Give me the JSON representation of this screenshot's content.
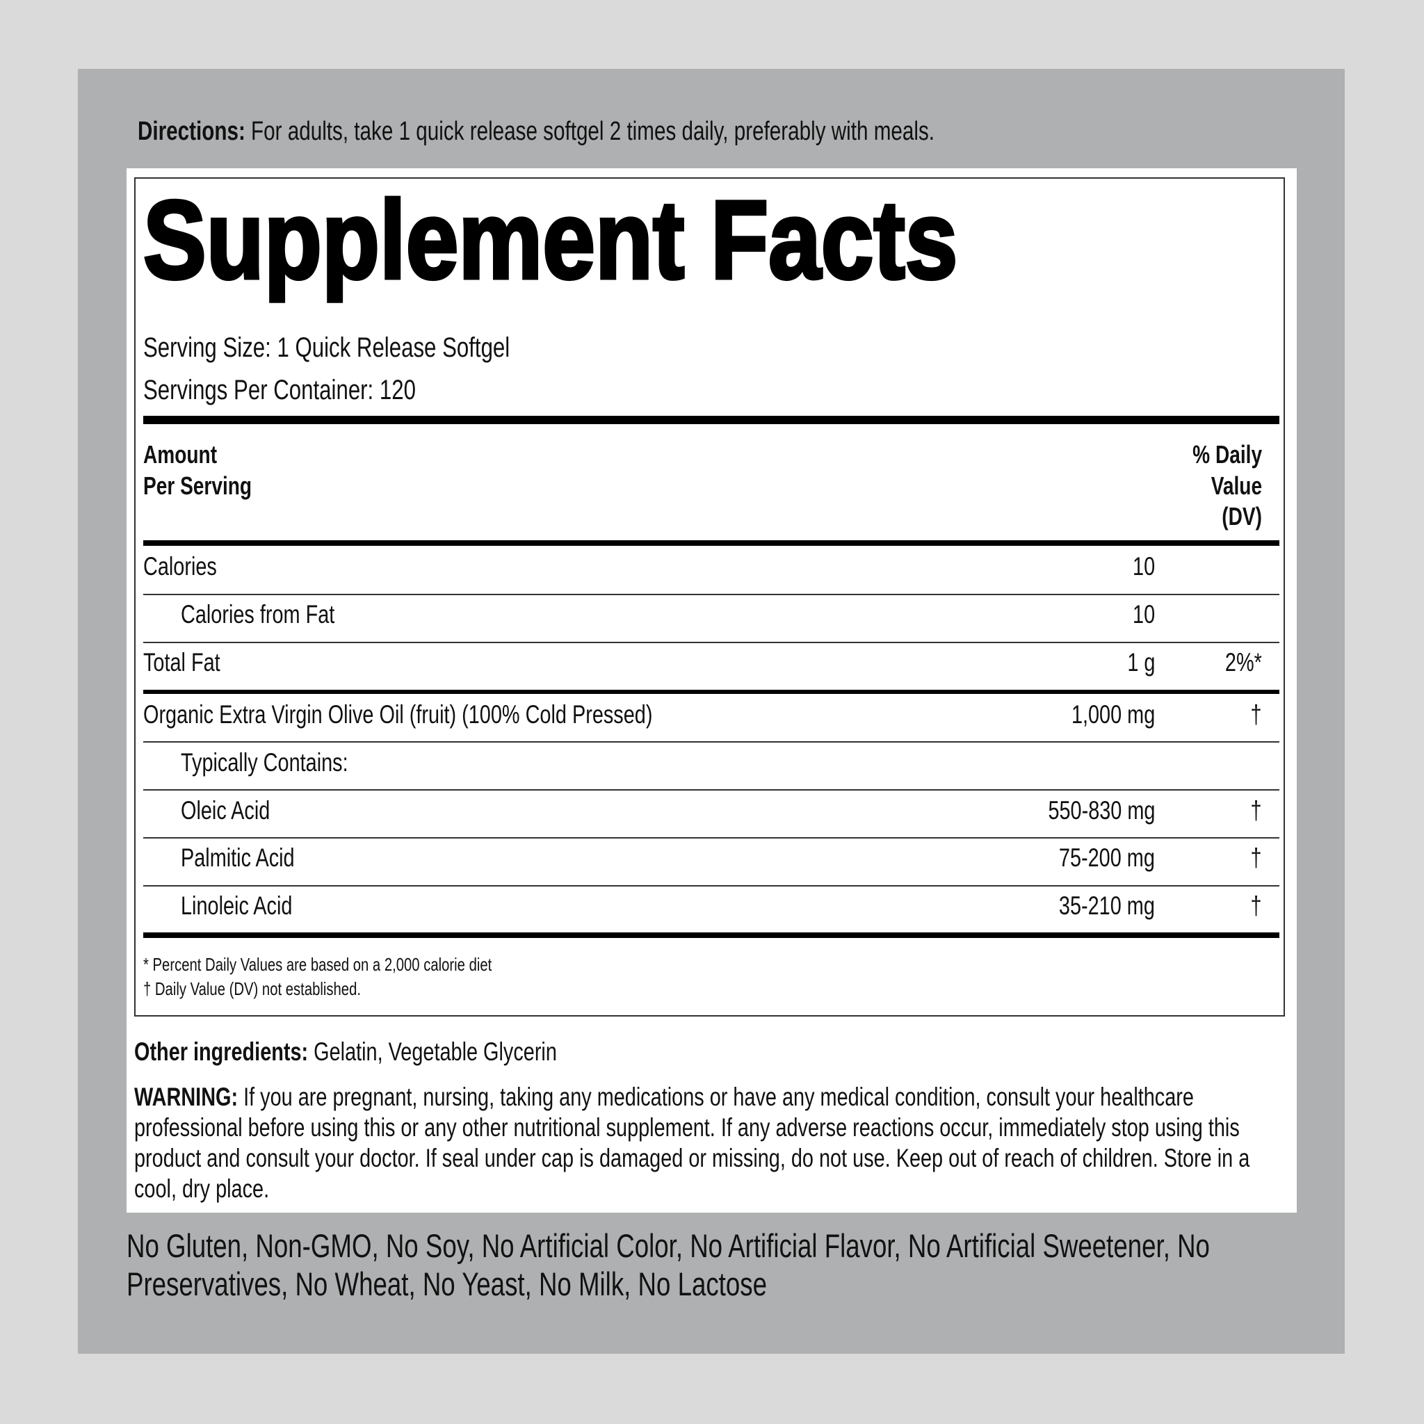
{
  "directions": {
    "label": "Directions:",
    "text": " For adults, take 1 quick release softgel 2 times daily, preferably with meals."
  },
  "facts": {
    "title": "Supplement Facts",
    "serving_size": "Serving Size: 1 Quick Release Softgel",
    "servings_per_container": "Servings Per Container: 120",
    "header_amount": [
      "Amount",
      "Per Serving"
    ],
    "header_dv": [
      "% Daily",
      "Value",
      "(DV)"
    ],
    "rows": [
      {
        "name": "Calories",
        "amount": "10",
        "dv": ""
      },
      {
        "name": "Calories from Fat",
        "amount": "10",
        "dv": ""
      },
      {
        "name": "Total Fat",
        "amount": "1 g",
        "dv": "2%*"
      },
      {
        "name": "Organic Extra Virgin Olive Oil (fruit) (100% Cold Pressed)",
        "amount": "1,000 mg",
        "dv": "†"
      },
      {
        "name": "Typically Contains:",
        "amount": "",
        "dv": ""
      },
      {
        "name": "Oleic Acid",
        "amount": "550-830 mg",
        "dv": "†"
      },
      {
        "name": "Palmitic Acid",
        "amount": "75-200 mg",
        "dv": "†"
      },
      {
        "name": "Linoleic Acid",
        "amount": "35-210 mg",
        "dv": "†"
      }
    ],
    "footnotes": [
      "* Percent Daily Values are based on a 2,000 calorie diet",
      "† Daily Value (DV) not established."
    ]
  },
  "other_ingredients": {
    "label": "Other ingredients:",
    "text": " Gelatin, Vegetable Glycerin"
  },
  "warning": {
    "label": "WARNING:",
    "text": " If you are pregnant, nursing, taking any medications or have any medical condition, consult your healthcare professional before using this or any other nutritional supplement. If any adverse reactions occur, immediately stop using this product and consult your doctor. If seal under cap is damaged or missing, do not use. Keep out of reach of children. Store in a cool, dry place."
  },
  "free_from": "No Gluten, Non-GMO, No Soy, No Artificial Color, No Artificial Flavor, No Artificial Sweetener, No Preservatives, No Wheat, No Yeast, No Milk, No Lactose"
}
